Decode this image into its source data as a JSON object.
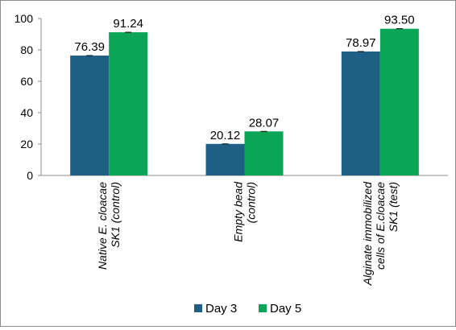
{
  "chart_data": {
    "type": "bar",
    "categories": [
      [
        "Native E. cloacae",
        "SK1 (control)"
      ],
      [
        "Empty bead",
        "(control)"
      ],
      [
        "Alginate immobilized",
        "cells of E.cloacae",
        "SK1 (test)"
      ]
    ],
    "series": [
      {
        "name": "Day 3",
        "color": "#1f5f86",
        "values": [
          76.39,
          20.12,
          78.97
        ],
        "labels": [
          "76.39",
          "20.12",
          "78.97"
        ]
      },
      {
        "name": "Day 5",
        "color": "#0aa556",
        "values": [
          91.24,
          28.07,
          93.5
        ],
        "labels": [
          "91.24",
          "28.07",
          "93.50"
        ]
      }
    ],
    "ylim": [
      0,
      100
    ],
    "yticks": [
      "0",
      "20",
      "40",
      "60",
      "80",
      "100"
    ],
    "legend_position": "bottom",
    "grid": false
  }
}
